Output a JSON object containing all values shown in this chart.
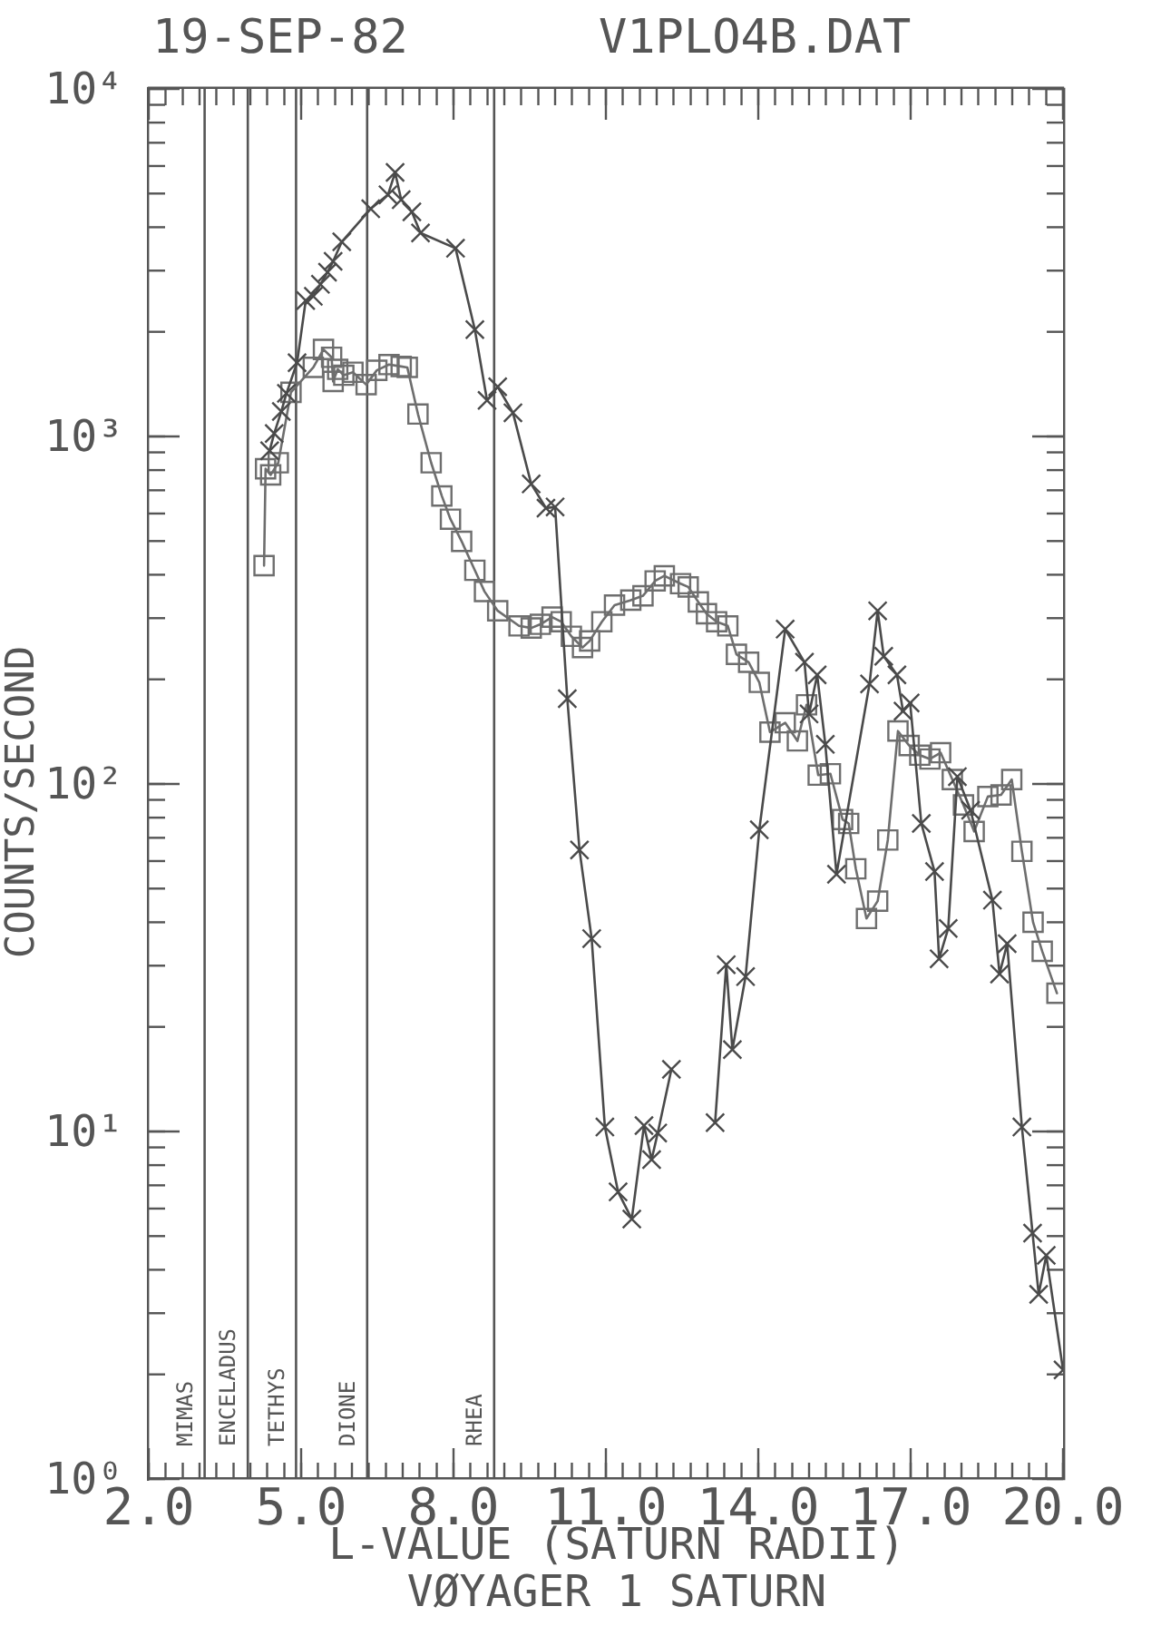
{
  "chart_data": {
    "type": "line",
    "title": "19-SEP-82",
    "subtitle": "V1PLO4B.DAT",
    "xlabel": "L-VALUE (SATURN RADII)",
    "ylabel": "COUNTS/SECOND",
    "annotations": [
      "VØYAGER 1 SATURN"
    ],
    "series": [
      {
        "color": "#4a4a4a",
        "marker": "cross",
        "x": [
          4.38,
          4.47,
          4.61,
          4.71,
          4.92,
          5.09,
          5.24,
          5.38,
          5.52,
          5.63,
          5.8,
          6.37,
          6.71,
          6.85,
          6.97,
          7.18,
          7.35,
          8.04,
          8.42,
          8.66,
          8.87,
          9.17,
          9.53,
          9.82,
          10.0,
          10.24,
          10.48,
          10.72,
          10.98,
          11.24,
          11.51,
          11.75,
          11.9,
          12.02,
          12.29,
          12.7,
          13.15,
          13.37,
          13.49,
          13.75,
          14.02,
          14.53,
          14.91,
          15.0,
          15.16,
          15.32,
          15.54,
          16.19,
          16.35,
          16.47,
          16.73,
          16.85,
          16.99,
          17.21,
          17.47,
          17.56,
          17.74,
          17.92,
          18.18,
          18.61,
          18.75,
          18.9,
          19.19,
          19.4,
          19.52,
          19.67,
          20.0
        ],
        "values": [
          910,
          1020,
          1180,
          1330,
          1630,
          2460,
          2530,
          2740,
          2970,
          3190,
          3630,
          4520,
          4960,
          5750,
          4800,
          4430,
          3850,
          3480,
          2030,
          1270,
          1390,
          1170,
          730,
          622,
          627,
          176,
          64.6,
          35.9,
          10.3,
          6.7,
          5.6,
          10.4,
          8.3,
          9.9,
          15.1,
          null,
          10.6,
          30.2,
          17.2,
          27.9,
          73.8,
          279,
          224,
          159,
          206,
          130,
          55,
          194,
          315,
          233,
          206,
          162,
          171,
          77,
          56,
          31.4,
          38.4,
          105,
          84,
          46.3,
          28.4,
          34.7,
          10.3,
          5.1,
          3.4,
          4.4,
          2.06
        ]
      },
      {
        "color": "#6e6e6e",
        "marker": "square",
        "x": [
          4.27,
          4.3,
          4.4,
          4.55,
          4.8,
          5.24,
          5.44,
          5.6,
          5.63,
          5.72,
          5.84,
          6.02,
          6.28,
          6.49,
          6.73,
          6.97,
          7.09,
          7.3,
          7.56,
          7.77,
          7.94,
          8.16,
          8.42,
          8.61,
          8.87,
          9.29,
          9.53,
          9.71,
          9.94,
          10.12,
          10.32,
          10.54,
          10.68,
          10.92,
          11.17,
          11.49,
          11.73,
          11.97,
          12.15,
          12.47,
          12.62,
          12.82,
          12.98,
          13.18,
          13.4,
          13.57,
          13.81,
          14.02,
          14.23,
          14.53,
          14.77,
          14.95,
          15.18,
          15.42,
          15.66,
          15.78,
          15.92,
          16.13,
          16.35,
          16.55,
          16.75,
          16.97,
          17.18,
          17.38,
          17.59,
          17.82,
          18.04,
          18.25,
          18.52,
          18.78,
          18.99,
          19.19,
          19.41,
          19.59,
          19.88
        ],
        "values": [
          425,
          807,
          775,
          840,
          1340,
          1580,
          1780,
          1690,
          1440,
          1560,
          1500,
          1530,
          1410,
          1550,
          1610,
          1590,
          1580,
          1160,
          840,
          674,
          578,
          499,
          412,
          358,
          315,
          285,
          281,
          288,
          302,
          293,
          266,
          247,
          258,
          293,
          327,
          338,
          348,
          384,
          397,
          377,
          369,
          334,
          309,
          293,
          285,
          236,
          224,
          196,
          141,
          150,
          133,
          169,
          106,
          107,
          79,
          77,
          57,
          41,
          46,
          69,
          142,
          129,
          121,
          118,
          123,
          103,
          87,
          73,
          92,
          93,
          103,
          64,
          40,
          33,
          25
        ]
      }
    ],
    "xlim": [
      2,
      20
    ],
    "xticks": [
      {
        "value": 2,
        "label": "2.0"
      },
      {
        "value": 2.33,
        "label": null
      },
      {
        "value": 2.67,
        "label": null
      },
      {
        "value": 3,
        "label": null
      },
      {
        "value": 3.33,
        "label": null
      },
      {
        "value": 3.67,
        "label": null
      },
      {
        "value": 4,
        "label": null
      },
      {
        "value": 4.33,
        "label": null
      },
      {
        "value": 4.67,
        "label": null
      },
      {
        "value": 5,
        "label": "5.0"
      },
      {
        "value": 5.33,
        "label": null
      },
      {
        "value": 5.67,
        "label": null
      },
      {
        "value": 6,
        "label": null
      },
      {
        "value": 6.33,
        "label": null
      },
      {
        "value": 6.67,
        "label": null
      },
      {
        "value": 7,
        "label": null
      },
      {
        "value": 7.33,
        "label": null
      },
      {
        "value": 7.67,
        "label": null
      },
      {
        "value": 8,
        "label": "8.0"
      },
      {
        "value": 8.33,
        "label": null
      },
      {
        "value": 8.67,
        "label": null
      },
      {
        "value": 9,
        "label": null
      },
      {
        "value": 9.33,
        "label": null
      },
      {
        "value": 9.67,
        "label": null
      },
      {
        "value": 10,
        "label": null
      },
      {
        "value": 10.33,
        "label": null
      },
      {
        "value": 10.67,
        "label": null
      },
      {
        "value": 11,
        "label": "11.0"
      },
      {
        "value": 11.33,
        "label": null
      },
      {
        "value": 11.67,
        "label": null
      },
      {
        "value": 12,
        "label": null
      },
      {
        "value": 12.33,
        "label": null
      },
      {
        "value": 12.67,
        "label": null
      },
      {
        "value": 13,
        "label": null
      },
      {
        "value": 13.33,
        "label": null
      },
      {
        "value": 13.67,
        "label": null
      },
      {
        "value": 14,
        "label": "14.0"
      },
      {
        "value": 14.33,
        "label": null
      },
      {
        "value": 14.67,
        "label": null
      },
      {
        "value": 15,
        "label": null
      },
      {
        "value": 15.33,
        "label": null
      },
      {
        "value": 15.67,
        "label": null
      },
      {
        "value": 16,
        "label": null
      },
      {
        "value": 16.33,
        "label": null
      },
      {
        "value": 16.67,
        "label": null
      },
      {
        "value": 17,
        "label": "17.0"
      },
      {
        "value": 17.33,
        "label": null
      },
      {
        "value": 17.67,
        "label": null
      },
      {
        "value": 18,
        "label": null
      },
      {
        "value": 18.33,
        "label": null
      },
      {
        "value": 18.67,
        "label": null
      },
      {
        "value": 19,
        "label": null
      },
      {
        "value": 19.33,
        "label": null
      },
      {
        "value": 19.67,
        "label": null
      },
      {
        "value": 20,
        "label": "20.0"
      }
    ],
    "ylim": [
      1,
      10000
    ],
    "yticks": [
      {
        "value": 1,
        "label": "10⁰"
      },
      {
        "value": 2,
        "label": null
      },
      {
        "value": 3,
        "label": null
      },
      {
        "value": 4,
        "label": null
      },
      {
        "value": 5,
        "label": null
      },
      {
        "value": 6,
        "label": null
      },
      {
        "value": 7,
        "label": null
      },
      {
        "value": 8,
        "label": null
      },
      {
        "value": 9,
        "label": null
      },
      {
        "value": 10,
        "label": "10¹"
      },
      {
        "value": 20,
        "label": null
      },
      {
        "value": 30,
        "label": null
      },
      {
        "value": 40,
        "label": null
      },
      {
        "value": 50,
        "label": null
      },
      {
        "value": 60,
        "label": null
      },
      {
        "value": 70,
        "label": null
      },
      {
        "value": 80,
        "label": null
      },
      {
        "value": 90,
        "label": null
      },
      {
        "value": 100,
        "label": "10²"
      },
      {
        "value": 200,
        "label": null
      },
      {
        "value": 300,
        "label": null
      },
      {
        "value": 400,
        "label": null
      },
      {
        "value": 500,
        "label": null
      },
      {
        "value": 600,
        "label": null
      },
      {
        "value": 700,
        "label": null
      },
      {
        "value": 800,
        "label": null
      },
      {
        "value": 900,
        "label": null
      },
      {
        "value": 1000,
        "label": "10³"
      },
      {
        "value": 2000,
        "label": null
      },
      {
        "value": 3000,
        "label": null
      },
      {
        "value": 4000,
        "label": null
      },
      {
        "value": 5000,
        "label": null
      },
      {
        "value": 6000,
        "label": null
      },
      {
        "value": 7000,
        "label": null
      },
      {
        "value": 8000,
        "label": null
      },
      {
        "value": 9000,
        "label": null
      },
      {
        "value": 10000,
        "label": "10⁴"
      }
    ],
    "log": "y",
    "grid": false,
    "legend": false,
    "line_style": "solid",
    "ref_lines": [
      {
        "axis": "x",
        "value": 3.1,
        "label": "MIMAS"
      },
      {
        "axis": "x",
        "value": 3.95,
        "label": "ENCELADUS"
      },
      {
        "axis": "x",
        "value": 4.9,
        "label": "TETHYS"
      },
      {
        "axis": "x",
        "value": 6.3,
        "label": "DIONE"
      },
      {
        "axis": "x",
        "value": 8.8,
        "label": "RHEA"
      }
    ]
  }
}
